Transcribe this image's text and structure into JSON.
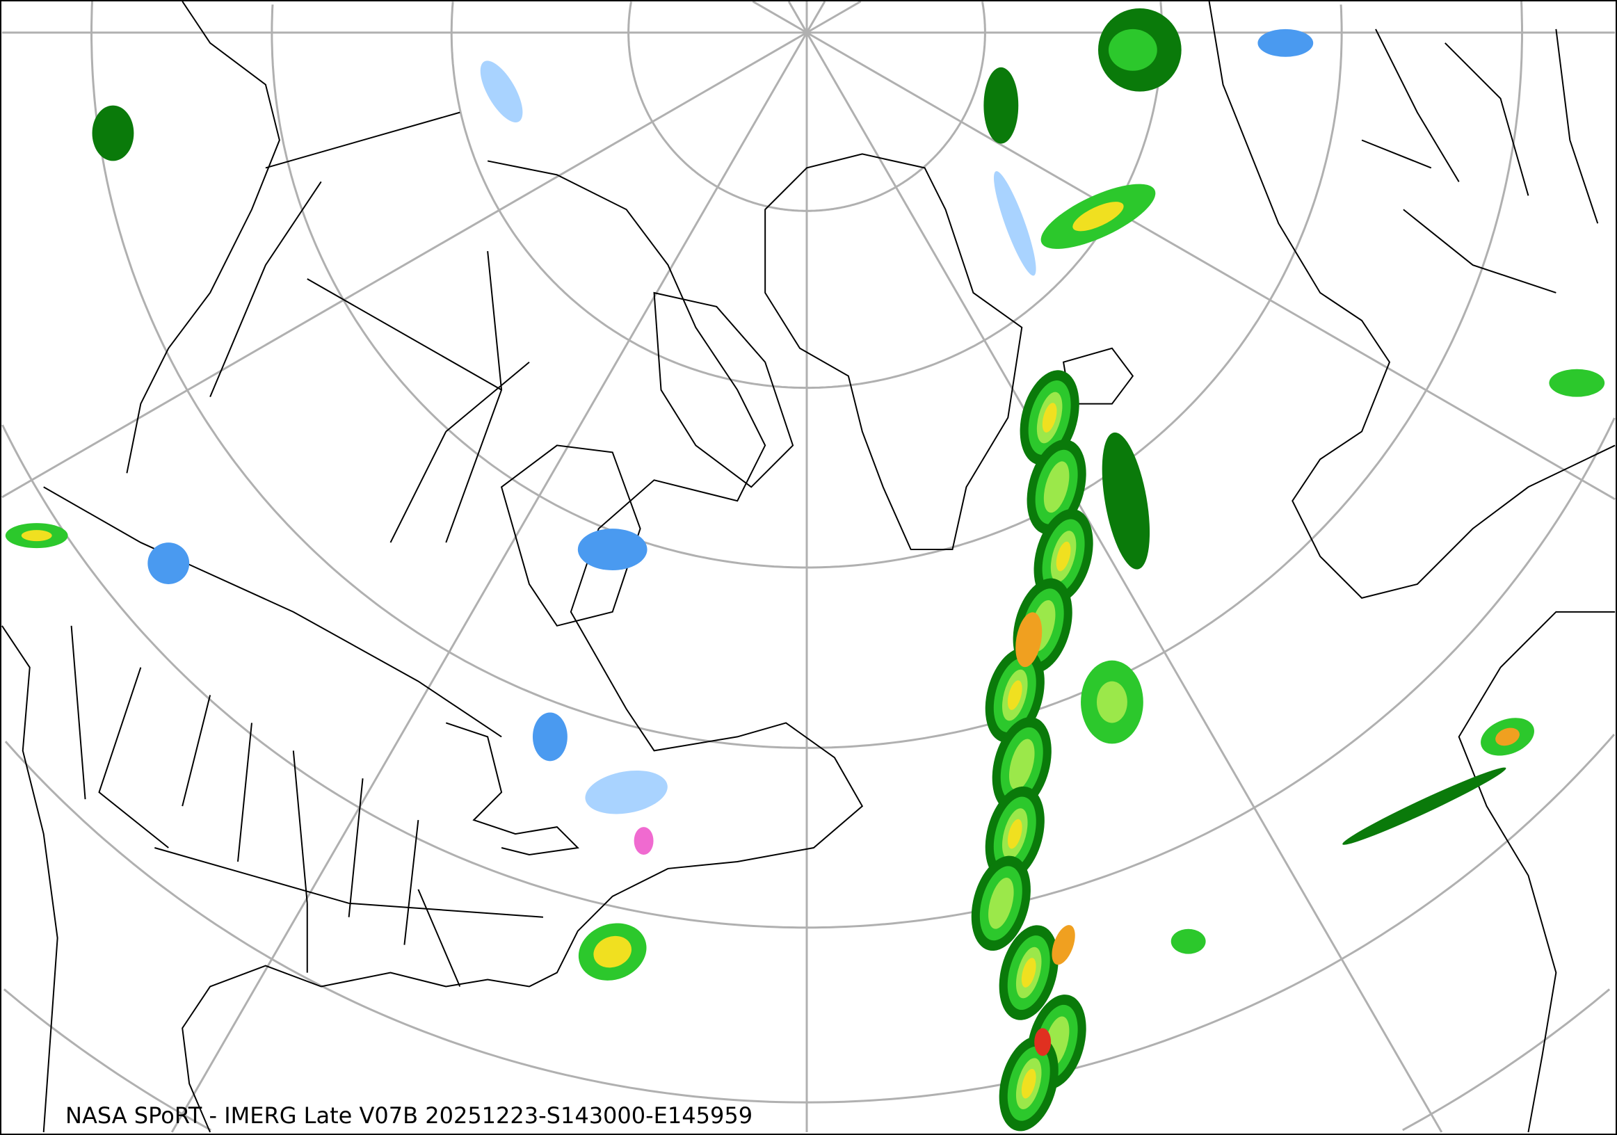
{
  "caption": "NASA SPoRT - IMERG Late V07B 20251223-S143000-E145959",
  "colors": {
    "grid": "#b0b0b0",
    "coastline": "#000000",
    "precip_light_blue": "#a9d3ff",
    "precip_blue": "#4a9af0",
    "precip_pink": "#f06ad0",
    "precip_dark_green": "#0a7a0a",
    "precip_green": "#2cc82c",
    "precip_light_green": "#9be84a",
    "precip_yellow": "#f0e020",
    "precip_orange": "#f0a020",
    "precip_red": "#e03020"
  }
}
